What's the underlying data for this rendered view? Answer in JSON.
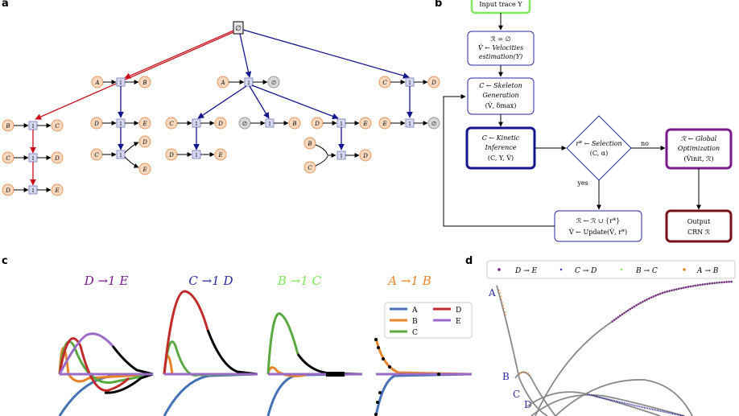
{
  "panels": {
    "a": "a",
    "b": "b",
    "c": "c",
    "d": "d"
  },
  "tree": {
    "root": "∅",
    "unit": "1",
    "level1": [
      {
        "left": "A",
        "right": "B"
      },
      {
        "left": "A",
        "right": "∅"
      },
      {
        "left": "C",
        "right": "D"
      }
    ],
    "col_A_B": [
      {
        "left": "B",
        "right": "C"
      },
      {
        "left": "C",
        "right": "D"
      },
      {
        "left": "D",
        "right": "E"
      }
    ],
    "col_A_B_2": [
      {
        "left": "D",
        "right": "E"
      },
      {
        "left": "C",
        "right": "D",
        "right2": "E"
      }
    ],
    "col_A_0": [
      {
        "left": "C",
        "right": "D"
      },
      {
        "left": "D",
        "right": "E"
      },
      {
        "left": "∅",
        "right": "B"
      },
      {
        "left": "D",
        "right": "E"
      },
      {
        "left": "B",
        "left2": "C",
        "right": "D"
      }
    ],
    "col_C_D": [
      {
        "left": "E",
        "right": "∅"
      }
    ]
  },
  "flow": {
    "input": "Input trace Y",
    "init_line1": "ℛ = ∅",
    "init_line2": "V̂ ← Velocities",
    "init_line3": "estimation(Y)",
    "skel_line1": "C ← Skeleton",
    "skel_line2": "Generation",
    "skel_line3": "(V̂, δmax)",
    "kin_line1": "C ← Kinetic",
    "kin_line2": "Inference",
    "kin_line3": "(C, Y, V̂)",
    "sel_line1": "r* ← Selection",
    "sel_line2": "(C, α)",
    "no": "no",
    "yes": "yes",
    "glob_line1": "ℛ ← Global",
    "glob_line2": "Optimization",
    "glob_line3": "(V̂init, ℛ)",
    "upd_line1": "ℛ ← ℛ ∪ {r*}",
    "upd_line2": "V̂ ← Update(V̂, r*)",
    "out_line1": "Output",
    "out_line2": "CRN ℛ"
  },
  "panel_c": {
    "titles": [
      "D →1 E",
      "C →1 D",
      "B →1 C",
      "A →1 B"
    ],
    "legend": [
      "A",
      "B",
      "C",
      "D",
      "E"
    ]
  },
  "panel_d": {
    "legend": [
      "D → E",
      "C → D",
      "B → C",
      "A → B"
    ],
    "labels": [
      "A",
      "B",
      "C",
      "D"
    ]
  },
  "colors": {
    "red": "#c8101c",
    "navy": "#14148c",
    "node_fill": "#f8d9bf",
    "node_stroke": "#e8975a",
    "unit_fill": "#d5d8f0",
    "green": "#7ce85a",
    "blue": "#2a2aa0",
    "purple": "#7a1a8c",
    "maroon": "#7a1018",
    "A": "#4472b4",
    "B": "#e8852a",
    "C": "#5aa840",
    "D": "#c02a2a",
    "E": "#9a6ac8"
  }
}
